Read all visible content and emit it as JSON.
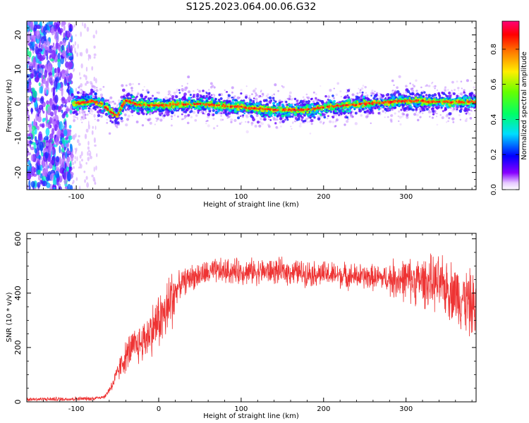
{
  "title": "S125.2023.064.00.06.G32",
  "chart_data": [
    {
      "type": "heatmap",
      "xlabel": "Height of straight line (km)",
      "ylabel": "Frequency (Hz)",
      "xlim": [
        -160,
        385
      ],
      "ylim": [
        -25,
        24
      ],
      "x_ticks": [
        -100,
        0,
        100,
        200,
        300
      ],
      "y_ticks": [
        -20,
        -10,
        0,
        10,
        20
      ],
      "colorbar": {
        "label": "Normalized spectral amplitude",
        "range": [
          0.0,
          0.96
        ],
        "ticks": [
          0.0,
          0.2,
          0.4,
          0.6,
          0.8
        ],
        "colormap": "gist_rainbow_r"
      },
      "ridge": {
        "x": [
          -105,
          -90,
          -80,
          -70,
          -60,
          -50,
          -45,
          -40,
          -35,
          -25,
          0,
          50,
          100,
          140,
          180,
          200,
          250,
          300,
          350,
          385
        ],
        "frequency": [
          0.0,
          0.3,
          0.8,
          0.0,
          -2.0,
          -3.5,
          -1.0,
          1.0,
          0.5,
          -0.3,
          -0.5,
          0.0,
          -1.0,
          -1.8,
          -1.8,
          -1.0,
          0.0,
          0.8,
          0.5,
          0.5
        ]
      },
      "noise_region_x": [
        -160,
        -105
      ]
    },
    {
      "type": "line",
      "xlabel": "Height of straight line (km)",
      "ylabel": "SNR (10 * v/v)",
      "xlim": [
        -160,
        385
      ],
      "ylim": [
        0,
        620
      ],
      "x_ticks": [
        -100,
        0,
        100,
        200,
        300
      ],
      "y_ticks": [
        0,
        200,
        400,
        600
      ],
      "series": [
        {
          "color": "#ee3333",
          "x": [
            -160,
            -120,
            -80,
            -65,
            -55,
            -45,
            -35,
            -20,
            -10,
            0,
            10,
            15,
            25,
            40,
            70,
            100,
            150,
            200,
            250,
            300,
            330,
            350,
            370,
            385
          ],
          "y": [
            10,
            10,
            12,
            20,
            70,
            140,
            190,
            220,
            260,
            300,
            330,
            380,
            430,
            460,
            480,
            480,
            480,
            470,
            460,
            450,
            440,
            420,
            380,
            340
          ]
        }
      ]
    }
  ]
}
